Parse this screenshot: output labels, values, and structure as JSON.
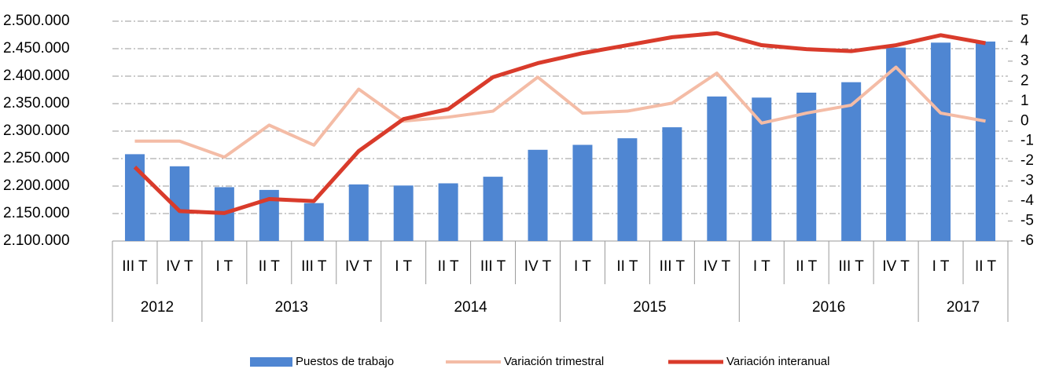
{
  "chart_data": {
    "type": "bar-line",
    "years": [
      {
        "label": "2012",
        "quarters": [
          "III T",
          "IV T"
        ]
      },
      {
        "label": "2013",
        "quarters": [
          "I T",
          "II T",
          "III T",
          "IV T"
        ]
      },
      {
        "label": "2014",
        "quarters": [
          "I T",
          "II T",
          "III T",
          "IV T"
        ]
      },
      {
        "label": "2015",
        "quarters": [
          "I T",
          "II T",
          "III T",
          "IV T"
        ]
      },
      {
        "label": "2016",
        "quarters": [
          "I T",
          "II T",
          "III T",
          "IV T"
        ]
      },
      {
        "label": "2017",
        "quarters": [
          "I T",
          "II T"
        ]
      }
    ],
    "series": [
      {
        "name": "Puestos de trabajo",
        "kind": "bar",
        "color": "#4f86d2",
        "values": [
          2258000,
          2236000,
          2198000,
          2193000,
          2169000,
          2203000,
          2201000,
          2205000,
          2217000,
          2266000,
          2275000,
          2287000,
          2307000,
          2363000,
          2361000,
          2370000,
          2389000,
          2452000,
          2461000,
          2463000
        ]
      },
      {
        "name": "Variación trimestral",
        "kind": "line",
        "axis": "y2",
        "color": "#f4bca6",
        "values": [
          -1.0,
          -1.0,
          -1.8,
          -0.2,
          -1.2,
          1.6,
          0.0,
          0.2,
          0.5,
          2.2,
          0.4,
          0.5,
          0.9,
          2.4,
          -0.1,
          0.4,
          0.8,
          2.7,
          0.4,
          0.0
        ]
      },
      {
        "name": "Variación interanual",
        "kind": "line",
        "axis": "y2",
        "color": "#d93b2b",
        "values": [
          -2.3,
          -4.5,
          -4.6,
          -3.9,
          -4.0,
          -1.5,
          0.1,
          0.6,
          2.2,
          2.9,
          3.4,
          3.8,
          4.2,
          4.4,
          3.8,
          3.6,
          3.5,
          3.8,
          4.3,
          3.9
        ]
      }
    ],
    "ylim": [
      2100000,
      2500000
    ],
    "yticks": [
      {
        "value": 2100000,
        "label": "2.100.000"
      },
      {
        "value": 2150000,
        "label": "2.150.000"
      },
      {
        "value": 2200000,
        "label": "2.200.000"
      },
      {
        "value": 2250000,
        "label": "2.250.000"
      },
      {
        "value": 2300000,
        "label": "2.300.000"
      },
      {
        "value": 2350000,
        "label": "2.350.000"
      },
      {
        "value": 2400000,
        "label": "2.400.000"
      },
      {
        "value": 2450000,
        "label": "2.450.000"
      },
      {
        "value": 2500000,
        "label": "2.500.000"
      }
    ],
    "y2lim": [
      -6,
      5
    ],
    "y2ticks": [
      -6,
      -5,
      -4,
      -3,
      -2,
      -1,
      0,
      1,
      2,
      3,
      4,
      5
    ],
    "grid": true,
    "legend": "bottom"
  }
}
